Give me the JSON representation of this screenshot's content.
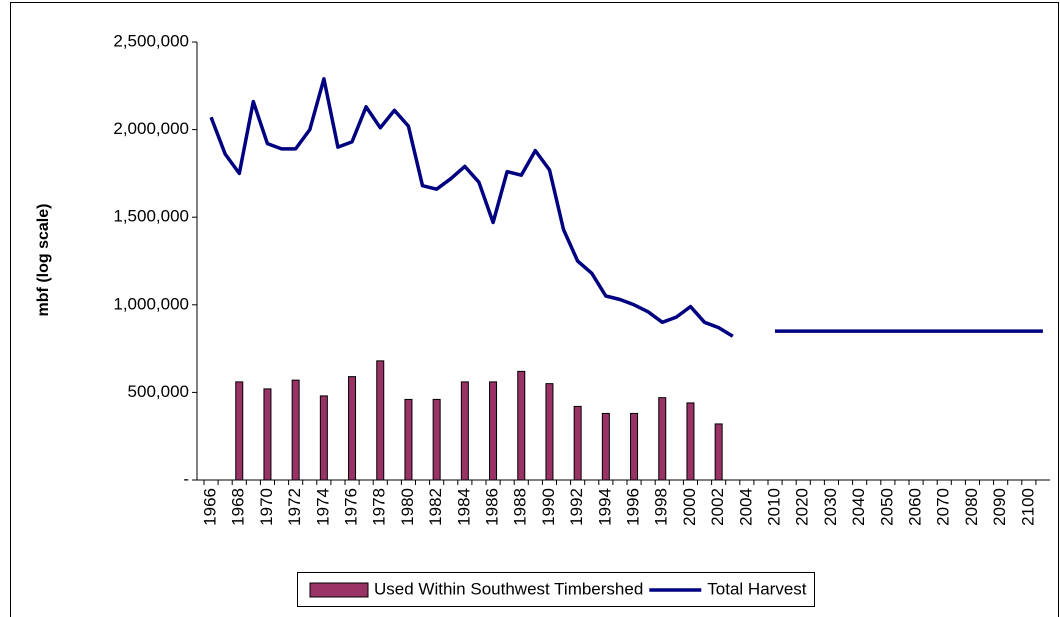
{
  "chart_data": {
    "type": "bar",
    "y_label": "mbf (log scale)",
    "categories": [
      "1966",
      null,
      "1968",
      null,
      "1970",
      null,
      "1972",
      null,
      "1974",
      null,
      "1976",
      null,
      "1978",
      null,
      "1980",
      null,
      "1982",
      null,
      "1984",
      null,
      "1986",
      null,
      "1988",
      null,
      "1990",
      null,
      "1992",
      null,
      "1994",
      null,
      "1996",
      null,
      "1998",
      null,
      "2000",
      null,
      "2002",
      null,
      "2004",
      null,
      "2010",
      null,
      "2020",
      null,
      "2030",
      null,
      "2040",
      null,
      "2050",
      null,
      "2060",
      null,
      "2070",
      null,
      "2080",
      null,
      "2090",
      null,
      "2100",
      null
    ],
    "series": [
      {
        "name": "Used Within Southwest Timbershed",
        "type": "bar",
        "color": "#993366",
        "values": [
          null,
          null,
          560000,
          null,
          520000,
          null,
          570000,
          null,
          480000,
          null,
          590000,
          null,
          680000,
          null,
          460000,
          null,
          460000,
          null,
          560000,
          null,
          560000,
          null,
          620000,
          null,
          550000,
          null,
          420000,
          null,
          380000,
          null,
          380000,
          null,
          470000,
          null,
          440000,
          null,
          320000,
          null,
          null,
          null,
          null,
          null,
          null,
          null,
          null,
          null,
          null,
          null,
          null,
          null,
          null,
          null,
          null,
          null,
          null,
          null,
          null,
          null,
          null,
          null
        ]
      },
      {
        "name": "Total Harvest",
        "type": "line",
        "color": "#000080",
        "values": [
          2070000,
          1860000,
          1750000,
          2160000,
          1920000,
          1890000,
          1890000,
          2000000,
          2290000,
          1900000,
          1930000,
          2130000,
          2010000,
          2110000,
          2020000,
          1680000,
          1660000,
          1720000,
          1790000,
          1700000,
          1470000,
          1760000,
          1740000,
          1880000,
          1770000,
          1430000,
          1250000,
          1180000,
          1050000,
          1030000,
          1000000,
          960000,
          900000,
          930000,
          990000,
          900000,
          870000,
          820000,
          null,
          null,
          850000,
          850000,
          850000,
          850000,
          850000,
          850000,
          850000,
          850000,
          850000,
          850000,
          850000,
          850000,
          850000,
          850000,
          850000,
          850000,
          850000,
          850000,
          850000,
          850000
        ]
      }
    ],
    "ylim": [
      0,
      2500000
    ],
    "yticks": [
      {
        "value": 0,
        "label": "-"
      },
      {
        "value": 500000,
        "label": "500,000"
      },
      {
        "value": 1000000,
        "label": "1,000,000"
      },
      {
        "value": 1500000,
        "label": "1,500,000"
      },
      {
        "value": 2000000,
        "label": "2,000,000"
      },
      {
        "value": 2500000,
        "label": "2,500,000"
      }
    ],
    "grid": false,
    "legend": "bottom"
  }
}
